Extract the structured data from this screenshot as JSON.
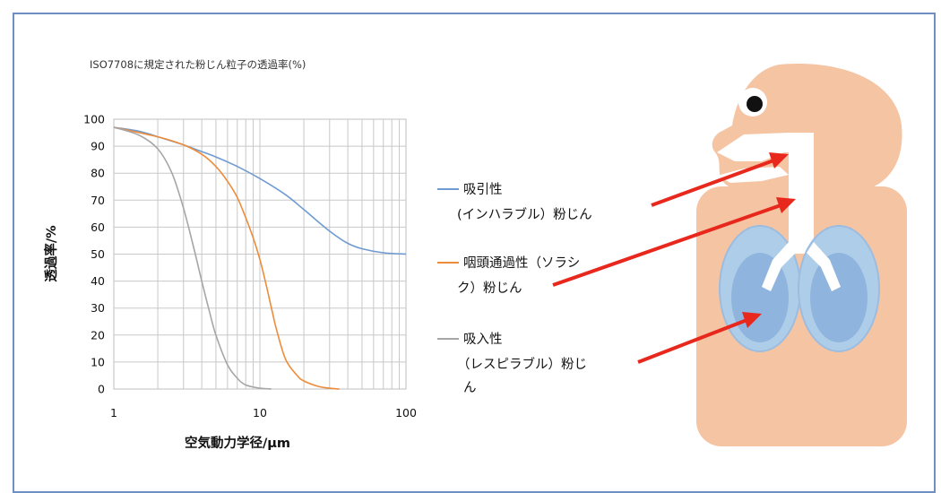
{
  "chart_data": {
    "type": "line",
    "title": "ISO7708に規定された粉じん粒子の透過率(%)",
    "xlabel": "空気動力学径/μm",
    "ylabel": "透過率/%",
    "xscale": "log",
    "xlim": [
      1,
      100
    ],
    "ylim": [
      0,
      100
    ],
    "xticks": [
      "1",
      "10",
      "100"
    ],
    "yticks": [
      "0",
      "10",
      "20",
      "30",
      "40",
      "50",
      "60",
      "70",
      "80",
      "90",
      "100"
    ],
    "grid": true,
    "series": [
      {
        "name": "吸引性 (インハラブル）粉じん",
        "color": "#6f9bd1",
        "x": [
          1,
          1.5,
          2,
          3,
          4,
          5,
          7,
          10,
          15,
          20,
          30,
          40,
          50,
          70,
          100
        ],
        "y": [
          97,
          95.5,
          93.5,
          90.5,
          88,
          86,
          82.5,
          78,
          72,
          66.5,
          58.5,
          54,
          52,
          50.5,
          50
        ]
      },
      {
        "name": "咽頭通過性（ソラシック）粉じん",
        "color": "#ed8c3a",
        "x": [
          1,
          2,
          3,
          4,
          5,
          6,
          7,
          8,
          9,
          10,
          11,
          12,
          13,
          15,
          18,
          20,
          25,
          30,
          35
        ],
        "y": [
          97,
          93.5,
          90.5,
          87,
          82.5,
          77,
          71,
          63.5,
          56,
          48,
          39,
          30,
          22,
          11,
          5,
          3,
          1,
          0.3,
          0
        ]
      },
      {
        "name": "吸入性 （レスピラブル）粉じん",
        "color": "#a6a6a6",
        "x": [
          1,
          1.5,
          2,
          2.5,
          3,
          3.5,
          4,
          4.5,
          5,
          6,
          7,
          8,
          10,
          12
        ],
        "y": [
          97,
          94,
          89,
          80,
          67,
          53,
          40,
          29,
          20,
          9,
          4,
          1.5,
          0.3,
          0
        ]
      }
    ]
  },
  "legend": {
    "inhalable": [
      "吸引性",
      "(インハラブル）粉じん"
    ],
    "thoracic": [
      "咽頭通過性（ソラシ",
      "ク）粉じん"
    ],
    "respirable": [
      "吸入性",
      "（レスピラブル）粉じ",
      "ん"
    ]
  },
  "colors": {
    "skin": "#f5c4a3",
    "airway": "#ffffff",
    "lung": "#aecde9",
    "lung_inner": "#8fb5de",
    "arrow": "#e8281d"
  }
}
